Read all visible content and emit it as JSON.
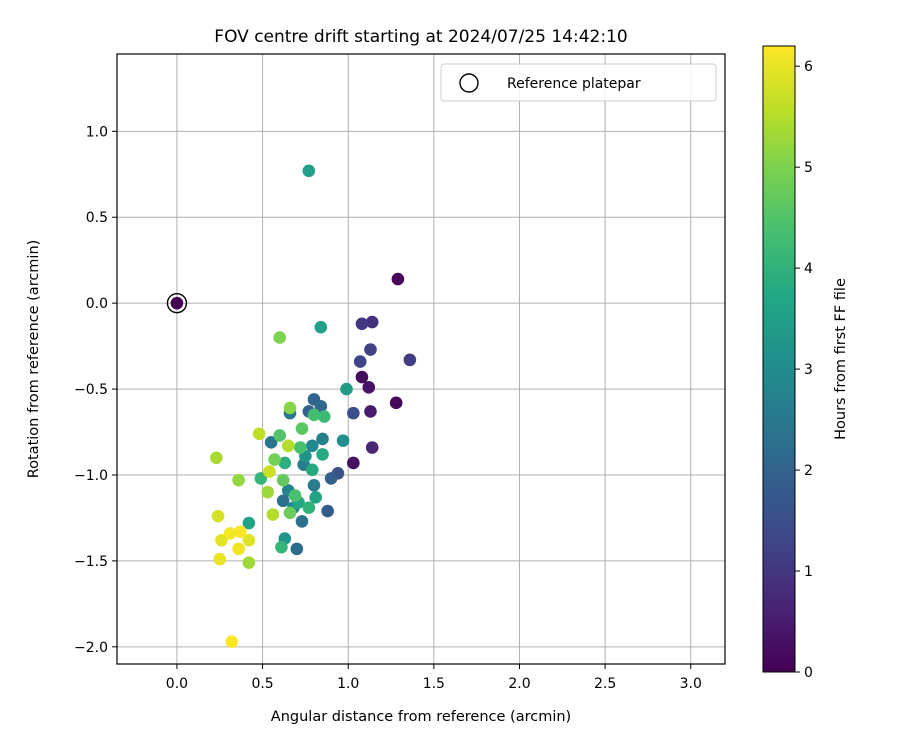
{
  "chart_data": {
    "type": "scatter",
    "title": "FOV centre drift starting at 2024/07/25 14:42:10",
    "xlabel": "Angular distance from reference (arcmin)",
    "ylabel": "Rotation from reference (arcmin)",
    "xlim": [
      -0.35,
      3.2
    ],
    "ylim": [
      -2.1,
      1.45
    ],
    "xticks": [
      0.0,
      0.5,
      1.0,
      1.5,
      2.0,
      2.5,
      3.0
    ],
    "xtick_labels": [
      "0.0",
      "0.5",
      "1.0",
      "1.5",
      "2.0",
      "2.5",
      "3.0"
    ],
    "yticks": [
      -2.0,
      -1.5,
      -1.0,
      -0.5,
      0.0,
      0.5,
      1.0
    ],
    "ytick_labels": [
      "−2.0",
      "−1.5",
      "−1.0",
      "−0.5",
      "0.0",
      "0.5",
      "1.0"
    ],
    "grid": true,
    "legend": {
      "position": "top-right",
      "entries": [
        {
          "label": "Reference platepar",
          "marker": "open-circle"
        }
      ]
    },
    "colorbar": {
      "label": "Hours from first FF file",
      "colormap": "viridis",
      "range": [
        0,
        6.2
      ],
      "ticks": [
        0,
        1,
        2,
        3,
        4,
        5,
        6
      ],
      "tick_labels": [
        "0",
        "1",
        "2",
        "3",
        "4",
        "5",
        "6"
      ]
    },
    "reference_point": {
      "x": 0.0,
      "y": 0.0,
      "c": 0.0
    },
    "points": [
      {
        "x": 1.29,
        "y": 0.14,
        "c": 0.1
      },
      {
        "x": 1.28,
        "y": -0.58,
        "c": 0.15
      },
      {
        "x": 1.08,
        "y": -0.43,
        "c": 0.2
      },
      {
        "x": 1.03,
        "y": -0.93,
        "c": 0.25
      },
      {
        "x": 1.12,
        "y": -0.49,
        "c": 0.3
      },
      {
        "x": 1.13,
        "y": -0.63,
        "c": 0.5
      },
      {
        "x": 1.14,
        "y": -0.84,
        "c": 0.7
      },
      {
        "x": 1.14,
        "y": -0.11,
        "c": 0.9
      },
      {
        "x": 1.08,
        "y": -0.12,
        "c": 1.0
      },
      {
        "x": 1.36,
        "y": -0.33,
        "c": 1.1
      },
      {
        "x": 1.13,
        "y": -0.27,
        "c": 1.2
      },
      {
        "x": 1.07,
        "y": -0.34,
        "c": 1.3
      },
      {
        "x": 1.03,
        "y": -0.64,
        "c": 1.5
      },
      {
        "x": 0.94,
        "y": -0.99,
        "c": 1.6
      },
      {
        "x": 0.88,
        "y": -1.21,
        "c": 1.8
      },
      {
        "x": 0.9,
        "y": -1.02,
        "c": 1.9
      },
      {
        "x": 0.77,
        "y": -0.63,
        "c": 1.9
      },
      {
        "x": 0.8,
        "y": -0.56,
        "c": 2.0
      },
      {
        "x": 0.84,
        "y": -0.6,
        "c": 2.1
      },
      {
        "x": 0.7,
        "y": -1.43,
        "c": 2.2
      },
      {
        "x": 0.73,
        "y": -1.27,
        "c": 2.3
      },
      {
        "x": 0.62,
        "y": -1.15,
        "c": 2.3
      },
      {
        "x": 0.55,
        "y": -0.81,
        "c": 2.4
      },
      {
        "x": 0.66,
        "y": -0.64,
        "c": 2.5
      },
      {
        "x": 0.74,
        "y": -0.94,
        "c": 2.6
      },
      {
        "x": 0.8,
        "y": -1.06,
        "c": 2.6
      },
      {
        "x": 0.85,
        "y": -0.79,
        "c": 2.7
      },
      {
        "x": 0.65,
        "y": -1.09,
        "c": 2.8
      },
      {
        "x": 0.79,
        "y": -0.83,
        "c": 2.9
      },
      {
        "x": 0.68,
        "y": -1.19,
        "c": 3.0
      },
      {
        "x": 0.97,
        "y": -0.8,
        "c": 3.1
      },
      {
        "x": 0.75,
        "y": -0.89,
        "c": 3.2
      },
      {
        "x": 0.63,
        "y": -1.37,
        "c": 3.3
      },
      {
        "x": 0.99,
        "y": -0.5,
        "c": 3.4
      },
      {
        "x": 0.84,
        "y": -0.14,
        "c": 3.5
      },
      {
        "x": 0.77,
        "y": 0.77,
        "c": 3.5
      },
      {
        "x": 0.42,
        "y": -1.28,
        "c": 3.6
      },
      {
        "x": 0.81,
        "y": -1.13,
        "c": 3.6
      },
      {
        "x": 0.71,
        "y": -1.16,
        "c": 3.7
      },
      {
        "x": 0.79,
        "y": -0.97,
        "c": 3.8
      },
      {
        "x": 0.85,
        "y": -0.88,
        "c": 3.8
      },
      {
        "x": 0.63,
        "y": -0.93,
        "c": 3.9
      },
      {
        "x": 0.77,
        "y": -1.19,
        "c": 4.0
      },
      {
        "x": 0.61,
        "y": -1.42,
        "c": 4.1
      },
      {
        "x": 0.49,
        "y": -1.02,
        "c": 4.1
      },
      {
        "x": 0.86,
        "y": -0.66,
        "c": 4.2
      },
      {
        "x": 0.8,
        "y": -0.65,
        "c": 4.3
      },
      {
        "x": 0.72,
        "y": -0.84,
        "c": 4.4
      },
      {
        "x": 0.69,
        "y": -1.12,
        "c": 4.4
      },
      {
        "x": 0.6,
        "y": -0.77,
        "c": 4.5
      },
      {
        "x": 0.73,
        "y": -0.73,
        "c": 4.6
      },
      {
        "x": 0.62,
        "y": -1.03,
        "c": 4.7
      },
      {
        "x": 0.66,
        "y": -1.22,
        "c": 4.8
      },
      {
        "x": 0.57,
        "y": -0.91,
        "c": 4.9
      },
      {
        "x": 0.6,
        "y": -0.2,
        "c": 5.0
      },
      {
        "x": 0.66,
        "y": -0.61,
        "c": 5.1
      },
      {
        "x": 0.36,
        "y": -1.03,
        "c": 5.2
      },
      {
        "x": 0.42,
        "y": -1.51,
        "c": 5.3
      },
      {
        "x": 0.53,
        "y": -1.1,
        "c": 5.3
      },
      {
        "x": 0.23,
        "y": -0.9,
        "c": 5.4
      },
      {
        "x": 0.65,
        "y": -0.83,
        "c": 5.5
      },
      {
        "x": 0.56,
        "y": -1.23,
        "c": 5.5
      },
      {
        "x": 0.48,
        "y": -0.76,
        "c": 5.6
      },
      {
        "x": 0.54,
        "y": -0.98,
        "c": 5.7
      },
      {
        "x": 0.24,
        "y": -1.24,
        "c": 5.8
      },
      {
        "x": 0.42,
        "y": -1.38,
        "c": 5.9
      },
      {
        "x": 0.26,
        "y": -1.38,
        "c": 5.95
      },
      {
        "x": 0.25,
        "y": -1.49,
        "c": 6.0
      },
      {
        "x": 0.36,
        "y": -1.43,
        "c": 6.05
      },
      {
        "x": 0.31,
        "y": -1.34,
        "c": 6.1
      },
      {
        "x": 0.37,
        "y": -1.33,
        "c": 6.15
      },
      {
        "x": 0.32,
        "y": -1.97,
        "c": 6.2
      }
    ]
  }
}
